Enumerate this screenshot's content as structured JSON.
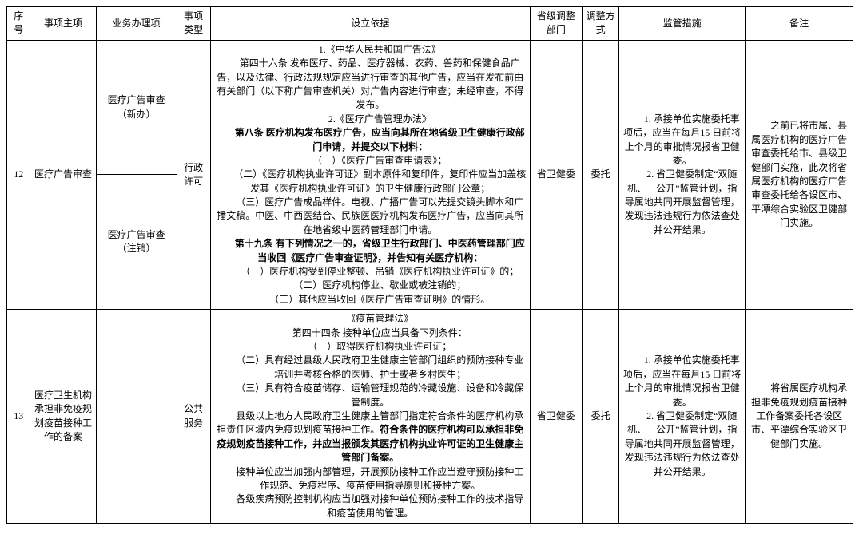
{
  "header": {
    "seq": "序号",
    "main": "事项主项",
    "biz": "业务办理项",
    "type": "事项类型",
    "basis": "设立依据",
    "adj_dept": "省级调整部门",
    "adj_mode": "调整方式",
    "supervise": "监管措施",
    "remark": "备注"
  },
  "row12": {
    "seq": "12",
    "main": "医疗广告审查",
    "biz1": "医疗广告审查（新办）",
    "biz2": "医疗广告审查（注销）",
    "type": "行政许可",
    "basis": [
      {
        "t": "1.《中华人民共和国广告法》",
        "b": false
      },
      {
        "t": "第四十六条 发布医疗、药品、医疗器械、农药、兽药和保健食品广告，以及法律、行政法规规定应当进行审查的其他广告，应当在发布前由有关部门（以下称广告审查机关）对广告内容进行审查；未经审查，不得发布。",
        "b": false
      },
      {
        "t": "2.《医疗广告管理办法》",
        "b": false
      },
      {
        "t": "第八条 医疗机构发布医疗广告，应当向其所在地省级卫生健康行政部门申请，并提交以下材料：",
        "b": true
      },
      {
        "t": "（一）《医疗广告审查申请表》；",
        "b": false
      },
      {
        "t": "（二）《医疗机构执业许可证》副本原件和复印件，复印件应当加盖核发其《医疗机构执业许可证》的卫生健康行政部门公章；",
        "b": false
      },
      {
        "t": "（三）医疗广告成品样件。电视、广播广告可以先提交镜头脚本和广播文稿。中医、中西医结合、民族医医疗机构发布医疗广告，应当向其所在地省级中医药管理部门申请。",
        "b": false
      },
      {
        "t": "第十九条 有下列情况之一的，省级卫生行政部门、中医药管理部门应当收回《医疗广告审查证明》，并告知有关医疗机构：",
        "b": true
      },
      {
        "t": "（一）医疗机构受到停业整顿、吊销《医疗机构执业许可证》的；",
        "b": false
      },
      {
        "t": "（二）医疗机构停业、歇业或被注销的；",
        "b": false
      },
      {
        "t": "（三）其他应当收回《医疗广告审查证明》的情形。",
        "b": false
      }
    ],
    "adj_dept": "省卫健委",
    "adj_mode": "委托",
    "supervision": [
      "1. 承接单位实施委托事项后，应当在每月15 日前将上个月的审批情况报省卫健委。",
      "2. 省卫健委制定“双随机、一公开”监管计划，指导属地共同开展监督管理，发现违法违规行为依法查处并公开结果。"
    ],
    "remark": "之前已将市属、县属医疗机构的医疗广告审查委托给市、县级卫健部门实施，此次将省属医疗机构的医疗广告审查委托给各设区市、平潭综合实验区卫健部门实施。"
  },
  "row13": {
    "seq": "13",
    "main": "医疗卫生机构承担非免疫规划疫苗接种工作的备案",
    "type": "公共服务",
    "basis_plain": [
      "《疫苗管理法》",
      "第四十四条 接种单位应当具备下列条件：",
      "（一）取得医疗机构执业许可证；",
      "（二）具有经过县级人民政府卫生健康主管部门组织的预防接种专业培训并考核合格的医师、护士或者乡村医生；",
      "（三）具有符合疫苗储存、运输管理规范的冷藏设施、设备和冷藏保管制度。"
    ],
    "basis_mixed": {
      "pre": "县级以上地方人民政府卫生健康主管部门指定符合条件的医疗机构承担责任区域内免疫规划疫苗接种工作。",
      "bold": "符合条件的医疗机构可以承担非免疫规划疫苗接种工作，并应当报颁发其医疗机构执业许可证的卫生健康主管部门备案。"
    },
    "basis_tail": [
      "接种单位应当加强内部管理，开展预防接种工作应当遵守预防接种工作规范、免疫程序、疫苗使用指导原则和接种方案。",
      "各级疾病预防控制机构应当加强对接种单位预防接种工作的技术指导和疫苗使用的管理。"
    ],
    "adj_dept": "省卫健委",
    "adj_mode": "委托",
    "supervision": [
      "1. 承接单位实施委托事项后，应当在每月15 日前将上个月的审批情况报省卫健委。",
      "2. 省卫健委制定“双随机、一公开”监管计划，指导属地共同开展监督管理，发现违法违规行为依法查处并公开结果。"
    ],
    "remark": "将省属医疗机构承担非免疫规划疫苗接种工作备案委托各设区市、平潭综合实验区卫健部门实施。"
  },
  "col_widths": {
    "seq": 26,
    "main": 72,
    "biz": 90,
    "type": 36,
    "basis": 366,
    "adj_dept": 58,
    "adj_mode": 40,
    "supervise": 140,
    "remark": 120
  }
}
